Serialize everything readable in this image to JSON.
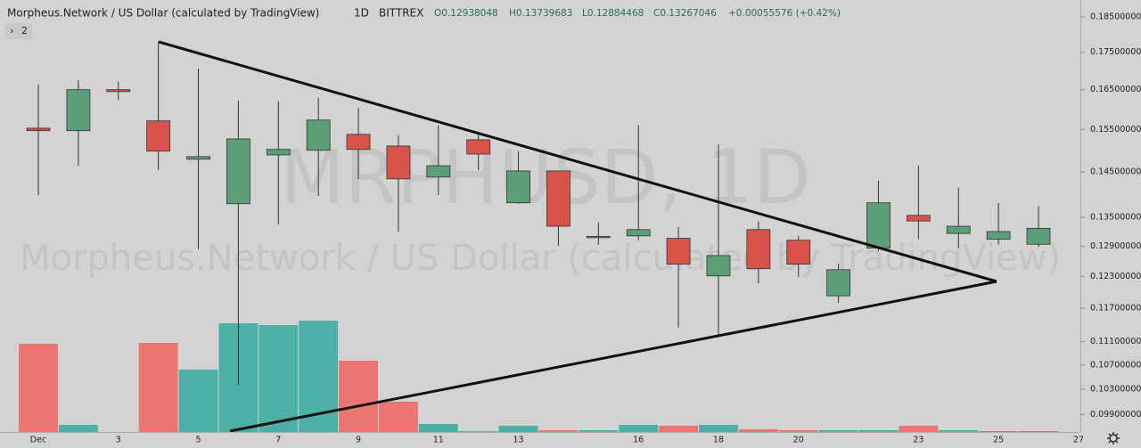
{
  "chart_data": {
    "type": "candlestick",
    "title": "Morpheus.Network / US Dollar (calculated by TradingView)",
    "interval": "1D",
    "exchange": "BITTREX",
    "ohlc_header": [
      "O0.12938048",
      "H0.13739683",
      "L0.12884468",
      "C0.13267046",
      "+0.00055576 (+0.42%)"
    ],
    "watermark": [
      "MRPHUSD, 1D",
      "Morpheus.Network / US Dollar (calculated by TradingView)"
    ],
    "indicator_count": "2",
    "categories": [
      "Dec",
      null,
      "3",
      null,
      "5",
      null,
      "7",
      null,
      "9",
      null,
      "11",
      null,
      "13",
      null,
      null,
      "16",
      null,
      "18",
      null,
      "20",
      null,
      null,
      "23",
      null,
      "25",
      null,
      "27"
    ],
    "open": [
      0.1553,
      0.1547,
      0.165,
      0.1571,
      0.1479,
      0.1379,
      0.1489,
      0.15,
      0.1538,
      0.151,
      0.1438,
      0.1525,
      0.1381,
      0.1452,
      0.1309,
      0.1311,
      0.1306,
      0.1231,
      0.1324,
      0.1302,
      0.1193,
      0.1286,
      0.1354,
      0.1316,
      0.1304,
      0.12938048,
      null
    ],
    "high": [
      0.1663,
      0.1675,
      0.1671,
      0.1779,
      0.1706,
      0.1622,
      0.162,
      0.1629,
      0.1604,
      0.1536,
      0.156,
      0.154,
      0.1498,
      0.1452,
      0.1339,
      0.156,
      0.1329,
      0.1514,
      0.1341,
      0.1311,
      0.1255,
      0.143,
      0.1464,
      0.1414,
      0.1381,
      0.13739683,
      null
    ],
    "low": [
      0.1398,
      0.1464,
      0.1624,
      0.1454,
      0.1284,
      0.1037,
      0.1335,
      0.1396,
      0.1434,
      0.132,
      0.1398,
      0.1454,
      0.1379,
      0.1291,
      0.1293,
      0.1302,
      0.1135,
      0.1122,
      0.1217,
      0.1229,
      0.118,
      0.128,
      0.1304,
      0.1286,
      0.1293,
      0.12884468,
      null
    ],
    "close": [
      0.1547,
      0.165,
      0.1645,
      0.1498,
      0.1485,
      0.1527,
      0.1502,
      0.1573,
      0.1502,
      0.1434,
      0.1464,
      0.1491,
      0.1452,
      0.1331,
      0.131,
      0.1324,
      0.1254,
      0.1271,
      0.1245,
      0.1254,
      0.1243,
      0.1381,
      0.1342,
      0.1331,
      0.132,
      0.13267046,
      null
    ],
    "volume": [
      99,
      8,
      0,
      100,
      70,
      122,
      120,
      125,
      80,
      34,
      9,
      1,
      7,
      2,
      2,
      8,
      7,
      8,
      3,
      2,
      2,
      2,
      7,
      2,
      1,
      1,
      null
    ],
    "up_color": "#5c9e78",
    "down_color": "#d9534a",
    "volume_up_color": "#4db0a6",
    "volume_down_color": "#ec7572",
    "log_scale": true,
    "ylim": [
      0.0963,
      0.19
    ],
    "yticks": [
      {
        "value": 0.185,
        "label": "0.18500000"
      },
      {
        "value": 0.175,
        "label": "0.17500000"
      },
      {
        "value": 0.165,
        "label": "0.16500000"
      },
      {
        "value": 0.155,
        "label": "0.15500000"
      },
      {
        "value": 0.145,
        "label": "0.14500000"
      },
      {
        "value": 0.135,
        "label": "0.13500000"
      },
      {
        "value": 0.129,
        "label": "0.12900000"
      },
      {
        "value": 0.123,
        "label": "0.12300000"
      },
      {
        "value": 0.117,
        "label": "0.11700000"
      },
      {
        "value": 0.111,
        "label": "0.11100000"
      },
      {
        "value": 0.107,
        "label": "0.10700000"
      },
      {
        "value": 0.103,
        "label": "0.10300000"
      },
      {
        "value": 0.099,
        "label": "0.09900000"
      }
    ]
  }
}
